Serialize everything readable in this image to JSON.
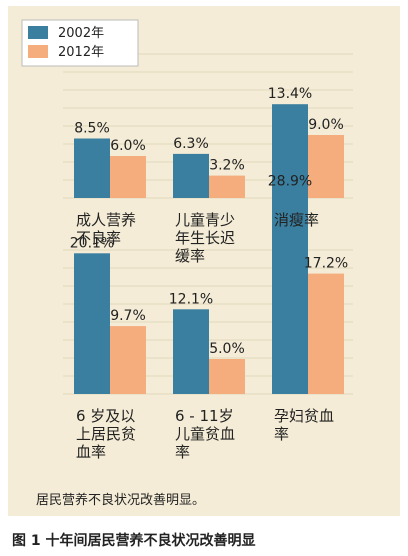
{
  "colors": {
    "s2002": "#3a7fa0",
    "s2012": "#f6ad7d",
    "panel": "#f4ecd6",
    "grid": "#e2d7bd"
  },
  "chart_data": {
    "type": "bar",
    "legend": {
      "placement": "top-left",
      "entries": [
        "2002年",
        "2012年"
      ]
    },
    "series": [
      {
        "name": "2002年",
        "values": [
          8.5,
          6.3,
          13.4,
          20.1,
          12.1,
          28.9
        ]
      },
      {
        "name": "2012年",
        "values": [
          6.0,
          3.2,
          9.0,
          9.7,
          5.0,
          17.2
        ]
      }
    ],
    "categories": [
      {
        "lines": [
          "成人营养",
          "不良率"
        ]
      },
      {
        "lines": [
          "儿童青少",
          "年生长迟",
          "缓率"
        ]
      },
      {
        "lines": [
          "消瘦率"
        ]
      },
      {
        "lines": [
          "6 岁及以",
          "上居民贫",
          "血率"
        ]
      },
      {
        "lines": [
          "6 - 11岁",
          "儿童贫血",
          "率"
        ]
      },
      {
        "lines": [
          "孕妇贫血",
          "率"
        ]
      }
    ],
    "value_labels": [
      [
        "8.5%",
        "6.0%"
      ],
      [
        "6.3%",
        "3.2%"
      ],
      [
        "13.4%",
        "9.0%"
      ],
      [
        "20.1%",
        "9.7%"
      ],
      [
        "12.1%",
        "5.0%"
      ],
      [
        "28.9%",
        "17.2%"
      ]
    ],
    "grid": true
  },
  "note": "居民营养不良状况改善明显。",
  "caption": "图 1  十年间居民营养不良状况改善明显"
}
